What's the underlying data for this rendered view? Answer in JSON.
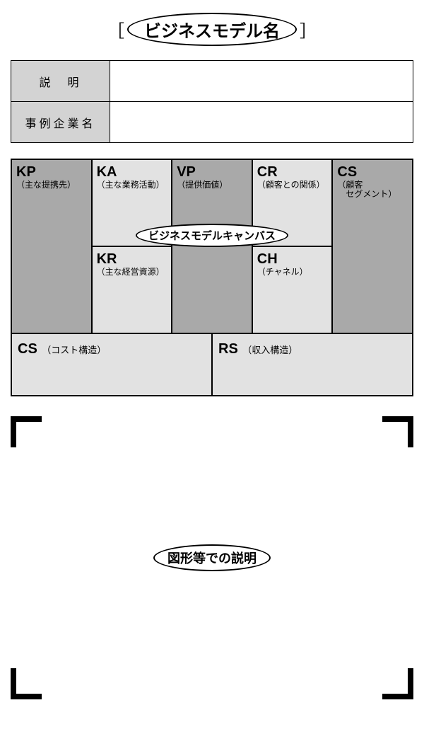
{
  "title": {
    "bracket_left": "［",
    "label": "ビジネスモデル名",
    "bracket_right": "］"
  },
  "info_table": {
    "rows": [
      {
        "header": "説　明",
        "value": ""
      },
      {
        "header": "事例企業名",
        "value": ""
      }
    ]
  },
  "canvas": {
    "overlay_label": "ビジネスモデルキャンバス",
    "cells": {
      "kp": {
        "code": "KP",
        "sub": "（主な提携先）",
        "bg": "bg-dark"
      },
      "ka": {
        "code": "KA",
        "sub": "（主な業務活動）",
        "bg": "bg-light"
      },
      "kr": {
        "code": "KR",
        "sub": "（主な経営資源）",
        "bg": "bg-light"
      },
      "vp": {
        "code": "VP",
        "sub": "（提供価値）",
        "bg": "bg-dark"
      },
      "cr": {
        "code": "CR",
        "sub": "（顧客との関係）",
        "bg": "bg-light"
      },
      "ch": {
        "code": "CH",
        "sub": "（チャネル）",
        "bg": "bg-light"
      },
      "cs": {
        "code": "CS",
        "sub": "（顧客\n　セグメント）",
        "bg": "bg-dark"
      }
    },
    "bottom": {
      "cost": {
        "code": "CS",
        "sub": "（コスト構造）"
      },
      "rev": {
        "code": "RS",
        "sub": "（収入構造）"
      }
    }
  },
  "bracket_box": {
    "label": "図形等での説明"
  },
  "colors": {
    "dark_cell": "#a9a9a9",
    "light_cell": "#e2e2e2",
    "header_cell": "#d3d3d3",
    "border": "#000000",
    "background": "#ffffff"
  }
}
